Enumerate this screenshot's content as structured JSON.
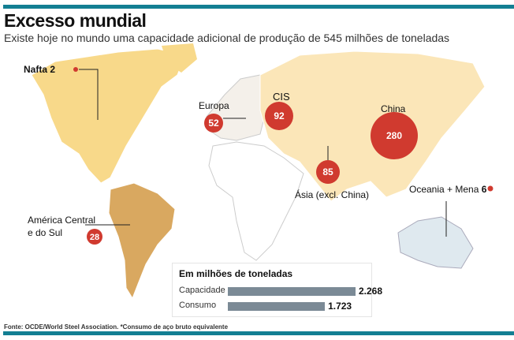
{
  "header": {
    "title": "Excesso mundial",
    "subtitle": "Existe hoje no mundo uma capacidade adicional de produção de 545 milhões de toneladas"
  },
  "regions": [
    {
      "name": "Nafta",
      "value": "2"
    },
    {
      "name": "Europa",
      "value": "52"
    },
    {
      "name": "CIS",
      "value": "92"
    },
    {
      "name": "China",
      "value": "280"
    },
    {
      "name": "Ásia (excl. China)",
      "value": "85"
    },
    {
      "name": "Oceania + Mena",
      "value": "6"
    },
    {
      "name_line1": "América Central",
      "name_line2": "e do Sul",
      "value": "28"
    }
  ],
  "legend": {
    "title": "Em milhões de toneladas",
    "rows": [
      {
        "label": "Capacidade",
        "value": "2.268",
        "num": 2268
      },
      {
        "label": "Consumo",
        "value": "1.723",
        "num": 1723
      }
    ]
  },
  "footer": {
    "source": "Fonte: OCDE/World Steel Association. *Consumo de aço bruto equivalente"
  },
  "colors": {
    "bubble": "#d03a2f",
    "accent": "#137f93",
    "bar": "#7b8a96"
  }
}
